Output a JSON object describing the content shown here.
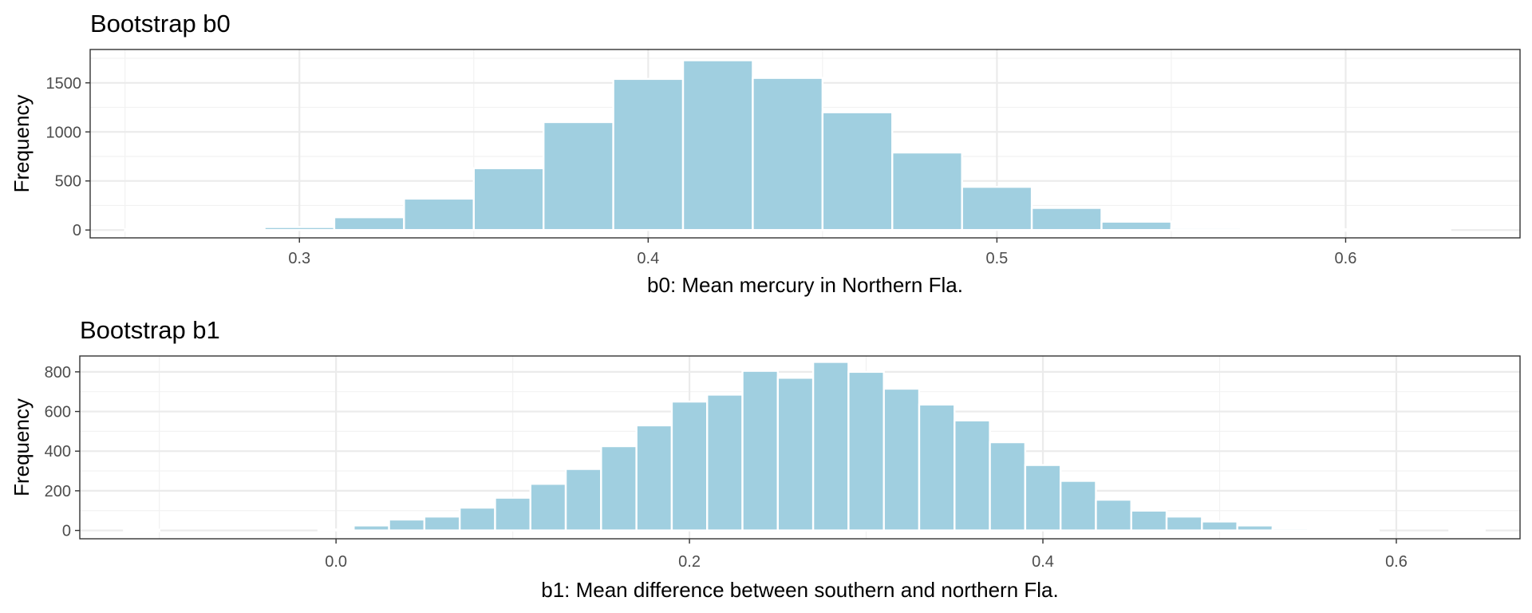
{
  "chart_data": [
    {
      "type": "bar",
      "title": "Bootstrap b0",
      "xlabel": "b0: Mean mercury in Northern Fla.",
      "ylabel": "Frequency",
      "xlim": [
        0.24,
        0.65
      ],
      "ylim": [
        -80,
        1840
      ],
      "x_ticks": [
        0.3,
        0.4,
        0.5,
        0.6
      ],
      "x_tick_labels": [
        "0.3",
        "0.4",
        "0.5",
        "0.6"
      ],
      "y_ticks": [
        0,
        500,
        1000,
        1500
      ],
      "y_tick_labels": [
        "0",
        "500",
        "1000",
        "1500"
      ],
      "grid": true,
      "bar_color": "#a0cfe0",
      "bin_width": 0.02,
      "bins": [
        {
          "x": 0.26,
          "count": 0
        },
        {
          "x": 0.28,
          "count": 0
        },
        {
          "x": 0.3,
          "count": 30
        },
        {
          "x": 0.32,
          "count": 130
        },
        {
          "x": 0.34,
          "count": 320
        },
        {
          "x": 0.36,
          "count": 630
        },
        {
          "x": 0.38,
          "count": 1100
        },
        {
          "x": 0.4,
          "count": 1540
        },
        {
          "x": 0.42,
          "count": 1730
        },
        {
          "x": 0.44,
          "count": 1550
        },
        {
          "x": 0.46,
          "count": 1200
        },
        {
          "x": 0.48,
          "count": 790
        },
        {
          "x": 0.5,
          "count": 440
        },
        {
          "x": 0.52,
          "count": 225
        },
        {
          "x": 0.54,
          "count": 85
        },
        {
          "x": 0.56,
          "count": 20
        },
        {
          "x": 0.58,
          "count": 5
        },
        {
          "x": 0.6,
          "count": 0
        },
        {
          "x": 0.62,
          "count": 0
        }
      ]
    },
    {
      "type": "bar",
      "title": "Bootstrap b1",
      "xlabel": "b1: Mean difference between southern and northern Fla.",
      "ylabel": "Frequency",
      "xlim": [
        -0.145,
        0.67
      ],
      "ylim": [
        -42,
        880
      ],
      "x_ticks": [
        0.0,
        0.2,
        0.4,
        0.6
      ],
      "x_tick_labels": [
        "0.0",
        "0.2",
        "0.4",
        "0.6"
      ],
      "y_ticks": [
        0,
        200,
        400,
        600,
        800
      ],
      "y_tick_labels": [
        "0",
        "200",
        "400",
        "600",
        "800"
      ],
      "grid": true,
      "bar_color": "#a0cfe0",
      "bin_width": 0.02,
      "bins": [
        {
          "x": -0.11,
          "count": 0
        },
        {
          "x": 0.0,
          "count": 5
        },
        {
          "x": 0.02,
          "count": 25
        },
        {
          "x": 0.04,
          "count": 55
        },
        {
          "x": 0.06,
          "count": 70
        },
        {
          "x": 0.08,
          "count": 115
        },
        {
          "x": 0.1,
          "count": 165
        },
        {
          "x": 0.12,
          "count": 235
        },
        {
          "x": 0.14,
          "count": 310
        },
        {
          "x": 0.16,
          "count": 425
        },
        {
          "x": 0.18,
          "count": 530
        },
        {
          "x": 0.2,
          "count": 650
        },
        {
          "x": 0.22,
          "count": 685
        },
        {
          "x": 0.24,
          "count": 805
        },
        {
          "x": 0.26,
          "count": 770
        },
        {
          "x": 0.28,
          "count": 850
        },
        {
          "x": 0.3,
          "count": 800
        },
        {
          "x": 0.32,
          "count": 715
        },
        {
          "x": 0.34,
          "count": 635
        },
        {
          "x": 0.36,
          "count": 555
        },
        {
          "x": 0.38,
          "count": 445
        },
        {
          "x": 0.4,
          "count": 330
        },
        {
          "x": 0.42,
          "count": 250
        },
        {
          "x": 0.44,
          "count": 155
        },
        {
          "x": 0.46,
          "count": 100
        },
        {
          "x": 0.48,
          "count": 70
        },
        {
          "x": 0.5,
          "count": 45
        },
        {
          "x": 0.52,
          "count": 25
        },
        {
          "x": 0.54,
          "count": 10
        },
        {
          "x": 0.56,
          "count": 3
        },
        {
          "x": 0.58,
          "count": 0
        },
        {
          "x": 0.64,
          "count": 0
        }
      ]
    }
  ]
}
